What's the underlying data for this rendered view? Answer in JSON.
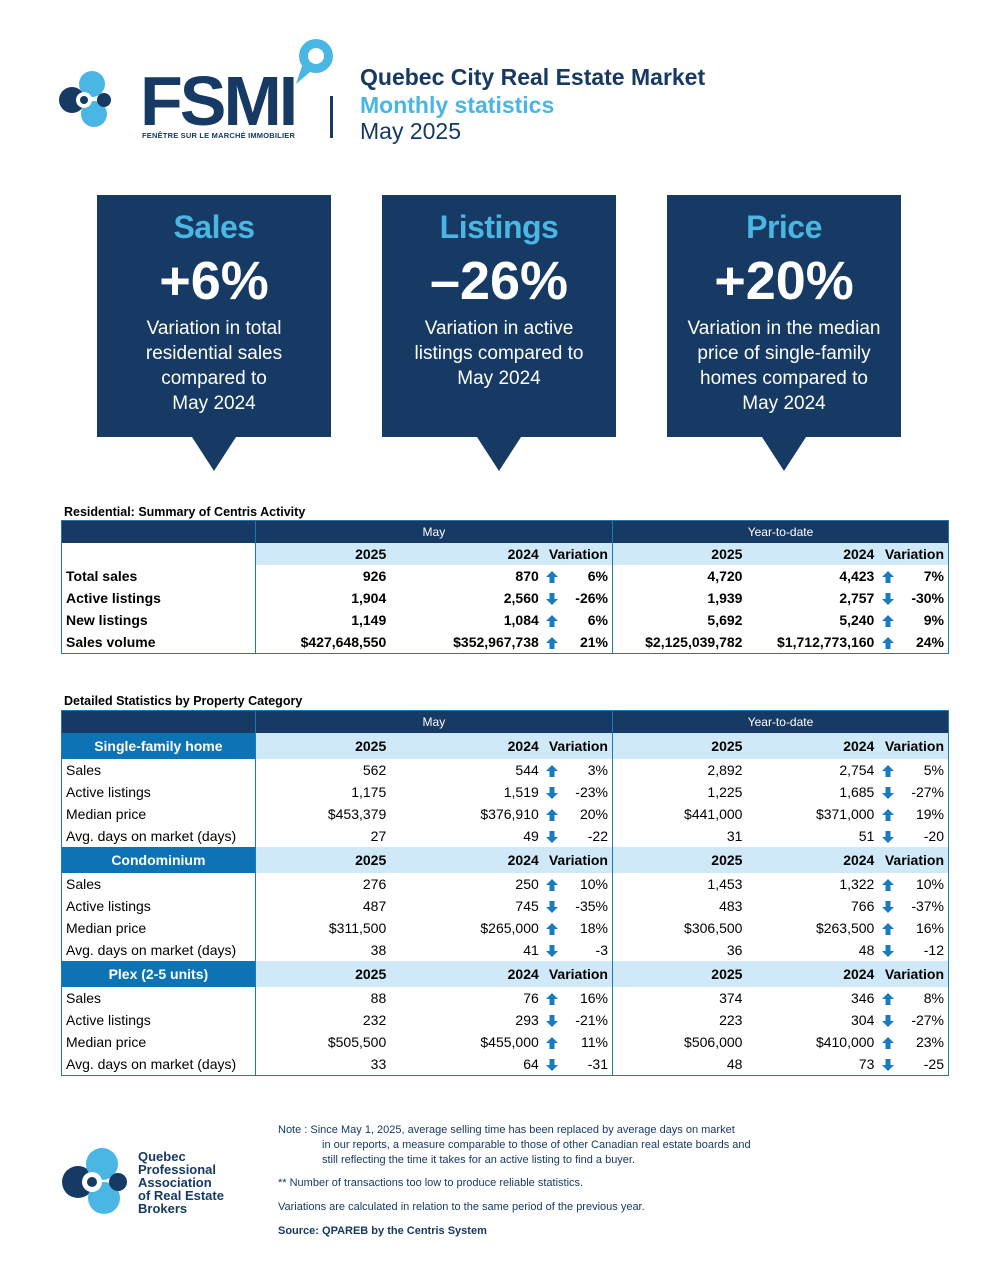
{
  "header": {
    "logo_text": "FSMI",
    "logo_tagline": "FENÊTRE SUR LE MARCHÉ IMMOBILIER",
    "title": "Quebec City Real Estate Market",
    "subtitle": "Monthly statistics",
    "period": "May 2025"
  },
  "callouts": [
    {
      "title": "Sales",
      "value": "+6%",
      "desc_lines": [
        "Variation in total",
        "residential sales",
        "compared to",
        "May 2024"
      ]
    },
    {
      "title": "Listings",
      "value": "–26%",
      "desc_lines": [
        "Variation in active",
        "listings compared to",
        "May 2024"
      ]
    },
    {
      "title": "Price",
      "value": "+20%",
      "desc_lines": [
        "Variation in the median",
        "price of single-family",
        "homes compared to",
        "May 2024"
      ]
    }
  ],
  "summary": {
    "title": "Residential: Summary of Centris Activity",
    "col_groups": [
      "May",
      "Year-to-date"
    ],
    "col_headers": [
      "2025",
      "2024",
      "Variation",
      "2025",
      "2024",
      "Variation"
    ],
    "rows": [
      {
        "label": "Total sales",
        "c": [
          "926",
          "870",
          "6%",
          "4,720",
          "4,423",
          "7%"
        ],
        "dir": [
          "up",
          "up"
        ]
      },
      {
        "label": "Active listings",
        "c": [
          "1,904",
          "2,560",
          "-26%",
          "1,939",
          "2,757",
          "-30%"
        ],
        "dir": [
          "down",
          "down"
        ]
      },
      {
        "label": "New listings",
        "c": [
          "1,149",
          "1,084",
          "6%",
          "5,692",
          "5,240",
          "9%"
        ],
        "dir": [
          "up",
          "up"
        ]
      },
      {
        "label": "Sales volume",
        "c": [
          "$427,648,550",
          "$352,967,738",
          "21%",
          "$2,125,039,782",
          "$1,712,773,160",
          "24%"
        ],
        "dir": [
          "up",
          "up"
        ]
      }
    ]
  },
  "detail": {
    "title": "Detailed Statistics by Property Category",
    "col_groups": [
      "May",
      "Year-to-date"
    ],
    "categories": [
      {
        "name": "Single-family home",
        "col_headers": [
          "2025",
          "2024",
          "Variation",
          "2025",
          "2024",
          "Variation"
        ],
        "rows": [
          {
            "label": "Sales",
            "c": [
              "562",
              "544",
              "3%",
              "2,892",
              "2,754",
              "5%"
            ],
            "dir": [
              "up",
              "up"
            ]
          },
          {
            "label": "Active listings",
            "c": [
              "1,175",
              "1,519",
              "-23%",
              "1,225",
              "1,685",
              "-27%"
            ],
            "dir": [
              "down",
              "down"
            ]
          },
          {
            "label": "Median price",
            "c": [
              "$453,379",
              "$376,910",
              "20%",
              "$441,000",
              "$371,000",
              "19%"
            ],
            "dir": [
              "up",
              "up"
            ]
          },
          {
            "label": "Avg. days on market (days)",
            "c": [
              "27",
              "49",
              "-22",
              "31",
              "51",
              "-20"
            ],
            "dir": [
              "down",
              "down"
            ]
          }
        ]
      },
      {
        "name": "Condominium",
        "col_headers": [
          "2025",
          "2024",
          "Variation",
          "2025",
          "2024",
          "Variation"
        ],
        "rows": [
          {
            "label": "Sales",
            "c": [
              "276",
              "250",
              "10%",
              "1,453",
              "1,322",
              "10%"
            ],
            "dir": [
              "up",
              "up"
            ]
          },
          {
            "label": "Active listings",
            "c": [
              "487",
              "745",
              "-35%",
              "483",
              "766",
              "-37%"
            ],
            "dir": [
              "down",
              "down"
            ]
          },
          {
            "label": "Median price",
            "c": [
              "$311,500",
              "$265,000",
              "18%",
              "$306,500",
              "$263,500",
              "16%"
            ],
            "dir": [
              "up",
              "up"
            ]
          },
          {
            "label": "Avg. days on market (days)",
            "c": [
              "38",
              "41",
              "-3",
              "36",
              "48",
              "-12"
            ],
            "dir": [
              "down",
              "down"
            ]
          }
        ]
      },
      {
        "name": "Plex (2-5 units)",
        "col_headers": [
          "2025",
          "2024",
          "Variation",
          "2025",
          "2024",
          "Variation"
        ],
        "rows": [
          {
            "label": "Sales",
            "c": [
              "88",
              "76",
              "16%",
              "374",
              "346",
              "8%"
            ],
            "dir": [
              "up",
              "up"
            ]
          },
          {
            "label": "Active listings",
            "c": [
              "232",
              "293",
              "-21%",
              "223",
              "304",
              "-27%"
            ],
            "dir": [
              "down",
              "down"
            ]
          },
          {
            "label": "Median price",
            "c": [
              "$505,500",
              "$455,000",
              "11%",
              "$506,000",
              "$410,000",
              "23%"
            ],
            "dir": [
              "up",
              "up"
            ]
          },
          {
            "label": "Avg. days on market (days)",
            "c": [
              "33",
              "64",
              "-31",
              "48",
              "73",
              "-25"
            ],
            "dir": [
              "down",
              "down"
            ]
          }
        ]
      }
    ]
  },
  "footer": {
    "org_lines": [
      "Quebec",
      "Professional",
      "Association",
      "of Real Estate",
      "Brokers"
    ],
    "note_lines": [
      "Note : Since May 1, 2025, average selling time has been replaced by average days on market",
      "in our reports, a measure comparable to those of other Canadian real estate boards and",
      "still reflecting the time it takes for an active listing to find a buyer."
    ],
    "footnote_star": "**  Number of transactions too low to produce reliable statistics.",
    "variation_note": "Variations are calculated in relation to the same period of the previous year.",
    "source": "Source: QPAREB by the Centris System"
  },
  "colors": {
    "navy": "#163a63",
    "light_blue": "#49b6e3",
    "row_blue": "#cfe9f8",
    "cat_blue": "#0e73b4",
    "arrow": "#1a7bbf"
  },
  "icons": {
    "up": "arrow-up-icon",
    "down": "arrow-down-icon"
  }
}
